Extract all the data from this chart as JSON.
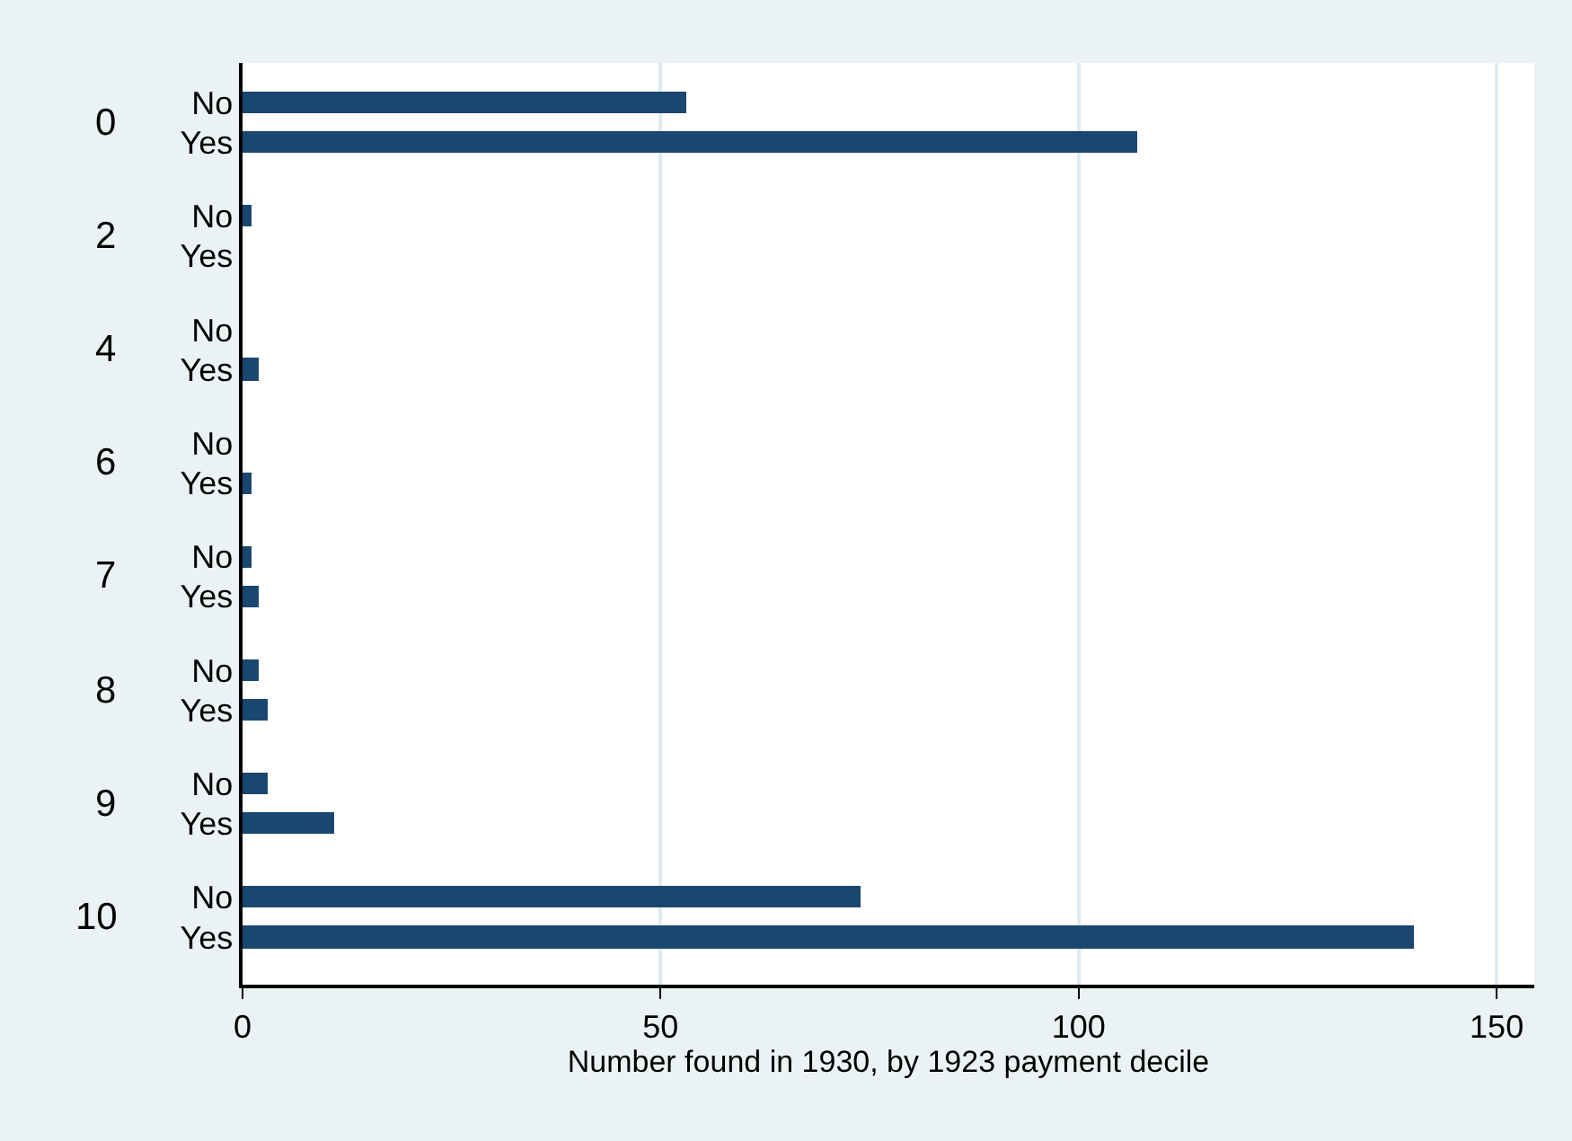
{
  "chart_data": {
    "type": "bar",
    "orientation": "horizontal",
    "categories": [
      "No",
      "Yes",
      "No",
      "Yes",
      "No",
      "Yes",
      "No",
      "Yes",
      "No",
      "Yes",
      "No",
      "Yes",
      "No",
      "Yes",
      "No",
      "Yes"
    ],
    "values": [
      53,
      107,
      1,
      0,
      0,
      2,
      0,
      1,
      1,
      2,
      2,
      3,
      3,
      11,
      74,
      140
    ],
    "color": "#1a476f",
    "xlabel": "Number found in 1930, by 1923 payment decile",
    "xlim": [
      0,
      154.5
    ],
    "xticks": [
      0,
      50,
      100,
      150
    ],
    "annotations": [
      "0",
      "2",
      "4",
      "6",
      "7",
      "8",
      "9",
      "10"
    ],
    "grid": "x"
  }
}
